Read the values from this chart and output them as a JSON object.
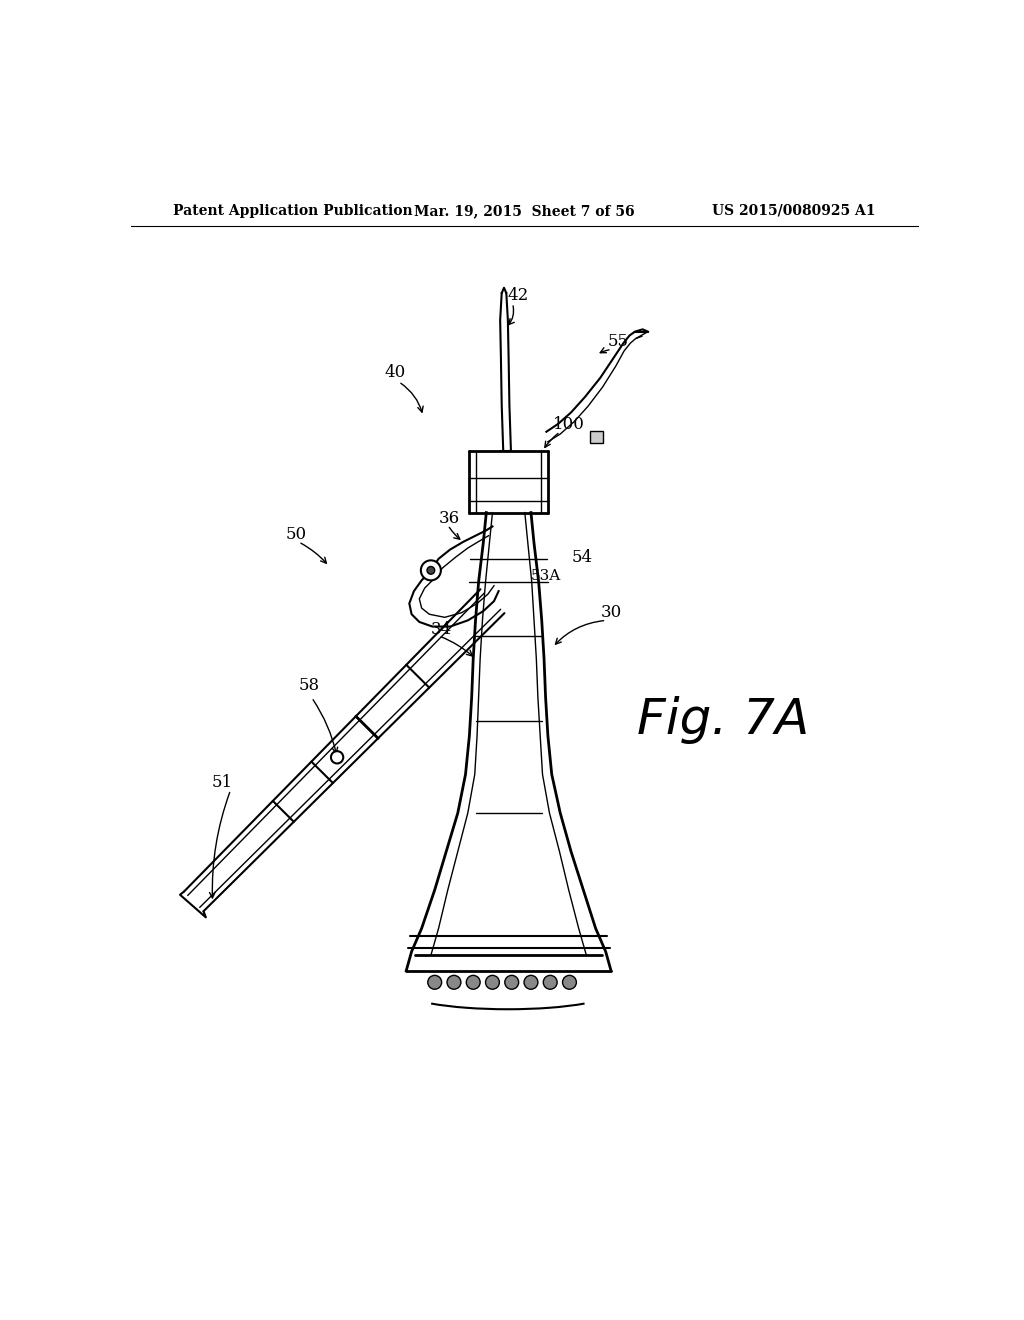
{
  "header_left": "Patent Application Publication",
  "header_mid": "Mar. 19, 2015  Sheet 7 of 56",
  "header_right": "US 2015/0080925 A1",
  "fig_label": "Fig. 7A",
  "background_color": "#ffffff",
  "line_color": "#000000",
  "lw_thick": 2.0,
  "lw_med": 1.5,
  "lw_thin": 1.0
}
